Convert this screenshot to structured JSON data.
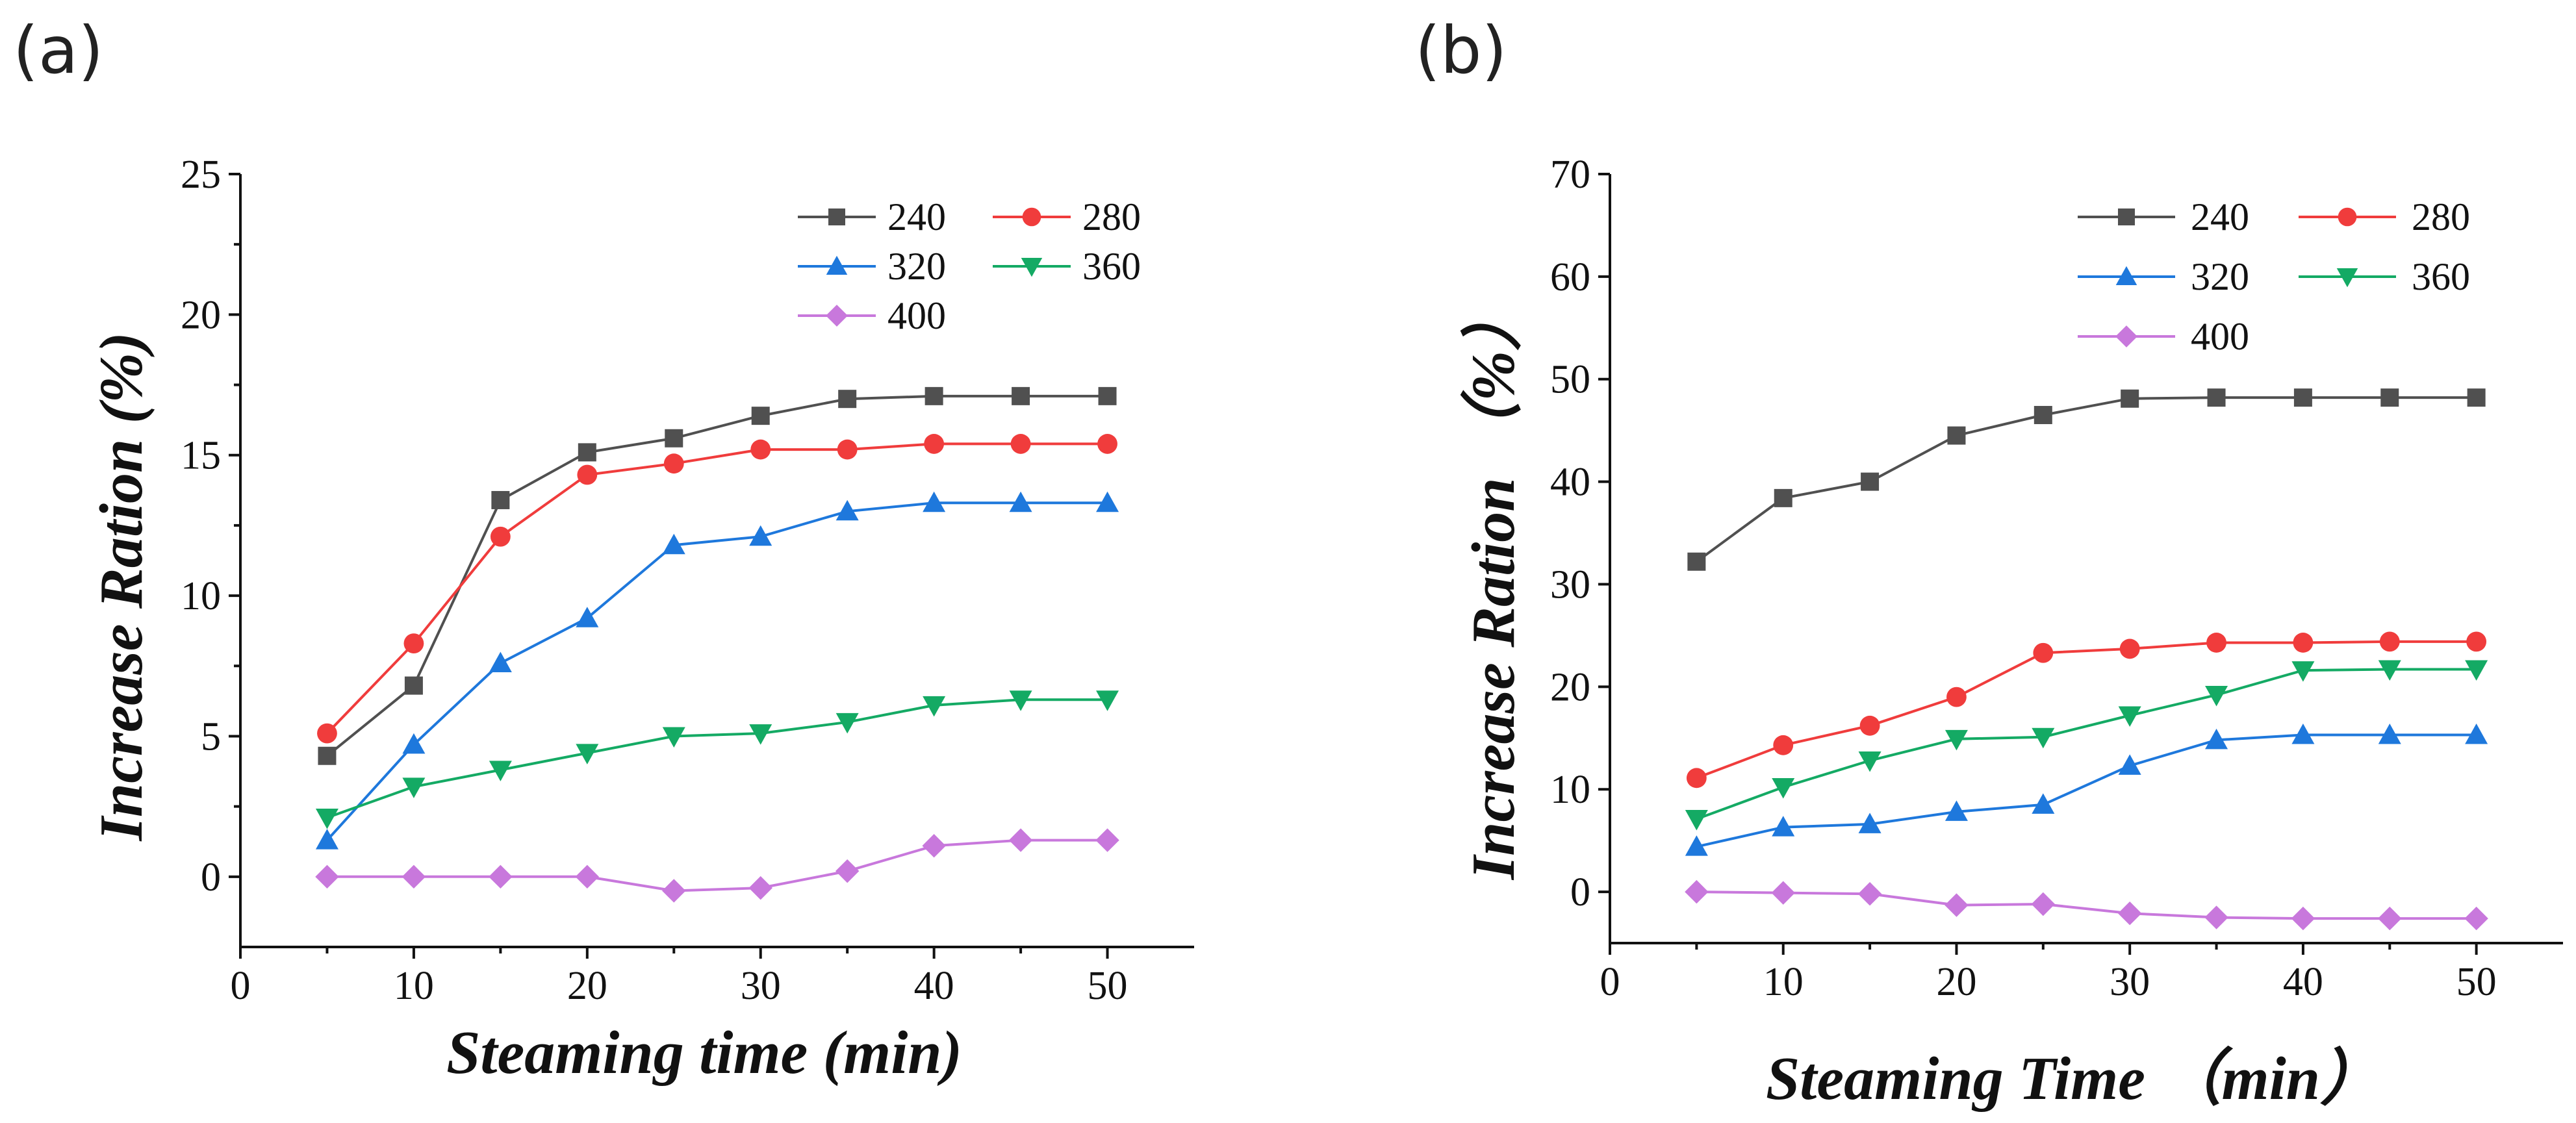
{
  "chart_data": [
    {
      "type": "line",
      "panel_label": "(a)",
      "xlabel": "Steaming time (min)",
      "ylabel": "Increase Ration (%)",
      "xlim": [
        0,
        55
      ],
      "ylim": [
        -2.5,
        25
      ],
      "xticks": [
        0,
        10,
        20,
        30,
        40,
        50
      ],
      "yticks": [
        0,
        5,
        10,
        15,
        20,
        25
      ],
      "x": [
        5,
        10,
        15,
        20,
        25,
        30,
        35,
        40,
        45,
        50
      ],
      "legend_position": "top-right",
      "series": [
        {
          "name": "240",
          "color": "#505050",
          "marker": "square",
          "values": [
            4.3,
            6.8,
            13.4,
            15.1,
            15.6,
            16.4,
            17.0,
            17.1,
            17.1,
            17.1
          ]
        },
        {
          "name": "280",
          "color": "#f03c3c",
          "marker": "circle",
          "values": [
            5.1,
            8.3,
            12.1,
            14.3,
            14.7,
            15.2,
            15.2,
            15.4,
            15.4,
            15.4
          ]
        },
        {
          "name": "320",
          "color": "#1e78dc",
          "marker": "triangle-up",
          "values": [
            1.3,
            4.7,
            7.6,
            9.2,
            11.8,
            12.1,
            13.0,
            13.3,
            13.3,
            13.3
          ]
        },
        {
          "name": "360",
          "color": "#14aa64",
          "marker": "triangle-down",
          "values": [
            2.1,
            3.2,
            3.8,
            4.4,
            5.0,
            5.1,
            5.5,
            6.1,
            6.3,
            6.3
          ]
        },
        {
          "name": "400",
          "color": "#c878dc",
          "marker": "diamond",
          "values": [
            0.0,
            0.0,
            0.0,
            0.0,
            -0.5,
            -0.4,
            0.2,
            1.1,
            1.3,
            1.3
          ]
        }
      ]
    },
    {
      "type": "line",
      "panel_label": "(b)",
      "xlabel": "Steaming Time （min）",
      "ylabel": "Increase Ration （%）",
      "xlim": [
        0,
        55
      ],
      "ylim": [
        -5,
        70
      ],
      "xticks": [
        0,
        10,
        20,
        30,
        40,
        50
      ],
      "yticks": [
        0,
        10,
        20,
        30,
        40,
        50,
        60,
        70
      ],
      "x": [
        5,
        10,
        15,
        20,
        25,
        30,
        35,
        40,
        45,
        50
      ],
      "legend_position": "top-right",
      "series": [
        {
          "name": "240",
          "color": "#505050",
          "marker": "square",
          "values": [
            32.2,
            38.4,
            40.0,
            44.5,
            46.5,
            48.1,
            48.2,
            48.2,
            48.2,
            48.2
          ]
        },
        {
          "name": "280",
          "color": "#f03c3c",
          "marker": "circle",
          "values": [
            11.1,
            14.3,
            16.2,
            19.0,
            23.3,
            23.7,
            24.3,
            24.3,
            24.4,
            24.4
          ]
        },
        {
          "name": "320",
          "color": "#1e78dc",
          "marker": "triangle-up",
          "values": [
            4.4,
            6.3,
            6.6,
            7.8,
            8.5,
            12.3,
            14.8,
            15.3,
            15.3,
            15.3
          ]
        },
        {
          "name": "360",
          "color": "#14aa64",
          "marker": "triangle-down",
          "values": [
            7.1,
            10.2,
            12.8,
            14.9,
            15.1,
            17.2,
            19.2,
            21.6,
            21.7,
            21.7
          ]
        },
        {
          "name": "400",
          "color": "#c878dc",
          "marker": "diamond",
          "values": [
            0.0,
            -0.1,
            -0.2,
            -1.3,
            -1.2,
            -2.1,
            -2.5,
            -2.6,
            -2.6,
            -2.6
          ]
        }
      ]
    }
  ]
}
